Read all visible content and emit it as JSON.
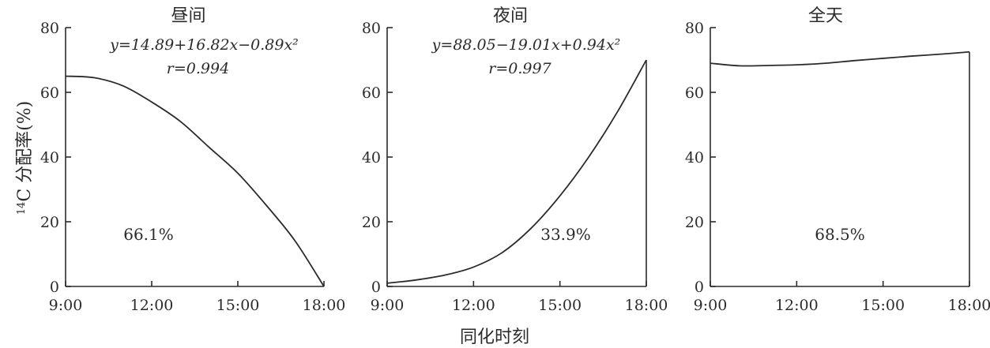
{
  "chart_data": [
    {
      "type": "line",
      "title": "昼间",
      "equation": "y=14.89+16.82x−0.89x²",
      "r_value": "r=0.994",
      "annotation": "66.1%",
      "x": [
        "9:00",
        "10:00",
        "11:00",
        "12:00",
        "13:00",
        "14:00",
        "15:00",
        "16:00",
        "17:00",
        "18:00"
      ],
      "values": [
        65,
        64.5,
        62,
        57,
        51,
        43,
        35,
        25,
        14,
        0
      ],
      "xticks": [
        "9:00",
        "12:00",
        "15:00",
        "18:00"
      ],
      "yticks": [
        0,
        20,
        40,
        60,
        80
      ],
      "ylim": [
        0,
        80
      ]
    },
    {
      "type": "line",
      "title": "夜间",
      "equation": "y=88.05−19.01x+0.94x²",
      "r_value": "r=0.997",
      "annotation": "33.9%",
      "x": [
        "9:00",
        "10:00",
        "11:00",
        "12:00",
        "13:00",
        "14:00",
        "15:00",
        "16:00",
        "17:00",
        "18:00"
      ],
      "values": [
        1,
        2,
        3.5,
        6,
        10.5,
        18,
        28,
        40,
        54,
        70
      ],
      "xticks": [
        "9:00",
        "12:00",
        "15:00",
        "18:00"
      ],
      "yticks": [
        0,
        20,
        40,
        60,
        80
      ],
      "ylim": [
        0,
        80
      ]
    },
    {
      "type": "line",
      "title": "全天",
      "annotation": "68.5%",
      "x": [
        "9:00",
        "10:00",
        "11:00",
        "12:00",
        "13:00",
        "14:00",
        "15:00",
        "16:00",
        "17:00",
        "18:00"
      ],
      "values": [
        69,
        68.2,
        68.3,
        68.5,
        69,
        69.8,
        70.5,
        71.2,
        71.8,
        72.5
      ],
      "xticks": [
        "9:00",
        "12:00",
        "15:00",
        "18:00"
      ],
      "yticks": [
        0,
        20,
        40,
        60,
        80
      ],
      "ylim": [
        0,
        80
      ]
    }
  ],
  "shared": {
    "ylabel_sup": "14",
    "ylabel": "C 分配率(%)",
    "xlabel": "同化时刻"
  }
}
